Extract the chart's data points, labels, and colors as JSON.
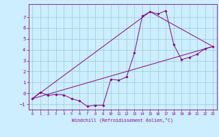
{
  "xlabel": "Windchill (Refroidissement éolien,°C)",
  "background_color": "#cceeff",
  "line_color": "#880088",
  "grid_color": "#99cccc",
  "spine_color": "#880088",
  "xlim": [
    -0.5,
    23.5
  ],
  "ylim": [
    -1.5,
    8.2
  ],
  "xticks": [
    0,
    1,
    2,
    3,
    4,
    5,
    6,
    7,
    8,
    9,
    10,
    11,
    12,
    13,
    14,
    15,
    16,
    17,
    18,
    19,
    20,
    21,
    22,
    23
  ],
  "yticks": [
    -1,
    0,
    1,
    2,
    3,
    4,
    5,
    6,
    7
  ],
  "series1_x": [
    0,
    1,
    2,
    3,
    4,
    5,
    6,
    7,
    8,
    9,
    10,
    11,
    12,
    13,
    14,
    15,
    16,
    17,
    18,
    19,
    20,
    21,
    22,
    23
  ],
  "series1_y": [
    -0.5,
    0.1,
    -0.2,
    -0.1,
    -0.15,
    -0.5,
    -0.7,
    -1.2,
    -1.1,
    -1.1,
    1.3,
    1.2,
    1.5,
    3.7,
    7.1,
    7.5,
    7.3,
    7.6,
    4.5,
    3.1,
    3.3,
    3.6,
    4.1,
    4.3
  ],
  "series2_x": [
    0,
    23
  ],
  "series2_y": [
    -0.5,
    4.3
  ],
  "series3_x": [
    0,
    15,
    23
  ],
  "series3_y": [
    -0.5,
    7.5,
    4.3
  ],
  "marker_size": 1.8,
  "linewidth": 0.7
}
